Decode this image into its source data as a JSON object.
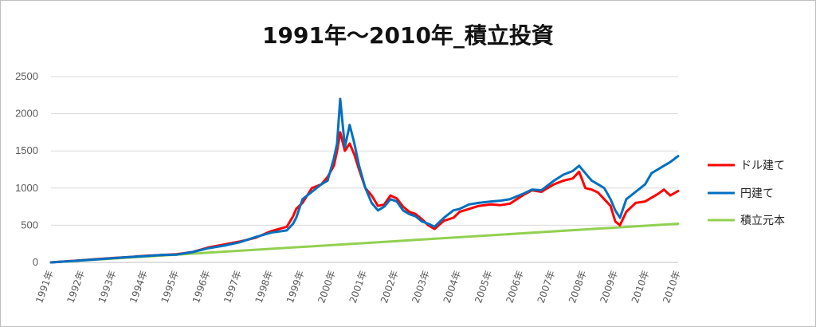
{
  "chart_data": {
    "type": "line",
    "title": "1991年～2010年_積立投資",
    "ylim": [
      0,
      2500
    ],
    "yticks": [
      0,
      500,
      1000,
      1500,
      2000,
      2500
    ],
    "xlim": [
      1991,
      2010.95
    ],
    "categories": [
      "1991年",
      "1992年",
      "1993年",
      "1994年",
      "1995年",
      "1996年",
      "1997年",
      "1998年",
      "1999年",
      "2000年",
      "2001年",
      "2002年",
      "2003年",
      "2004年",
      "2005年",
      "2006年",
      "2007年",
      "2008年",
      "2009年",
      "2010年",
      "2010年"
    ],
    "grid": true,
    "legend_position": "right",
    "series": [
      {
        "name": "ドル建て",
        "color": "#ff0000",
        "x": [
          1991.0,
          1991.5,
          1992.0,
          1992.5,
          1993.0,
          1993.5,
          1994.0,
          1994.5,
          1995.0,
          1995.5,
          1996.0,
          1996.5,
          1997.0,
          1997.5,
          1998.0,
          1998.5,
          1998.7,
          1998.8,
          1999.0,
          1999.3,
          1999.6,
          1999.8,
          2000.0,
          2000.1,
          2000.2,
          2000.35,
          2000.5,
          2000.65,
          2000.8,
          2001.0,
          2001.2,
          2001.4,
          2001.6,
          2001.8,
          2002.0,
          2002.2,
          2002.4,
          2002.6,
          2002.8,
          2003.0,
          2003.2,
          2003.5,
          2003.8,
          2004.0,
          2004.3,
          2004.6,
          2005.0,
          2005.3,
          2005.6,
          2006.0,
          2006.3,
          2006.6,
          2007.0,
          2007.3,
          2007.6,
          2007.8,
          2008.0,
          2008.2,
          2008.4,
          2008.6,
          2008.8,
          2008.95,
          2009.1,
          2009.3,
          2009.6,
          2009.9,
          2010.1,
          2010.3,
          2010.5,
          2010.7,
          2010.95
        ],
        "y": [
          0,
          15,
          30,
          45,
          60,
          72,
          88,
          100,
          110,
          140,
          200,
          240,
          280,
          330,
          420,
          480,
          620,
          720,
          800,
          1000,
          1050,
          1150,
          1300,
          1500,
          1750,
          1500,
          1600,
          1450,
          1250,
          1000,
          900,
          760,
          780,
          900,
          860,
          750,
          680,
          650,
          580,
          500,
          450,
          560,
          600,
          680,
          720,
          760,
          780,
          770,
          790,
          900,
          970,
          950,
          1050,
          1100,
          1130,
          1220,
          1000,
          980,
          940,
          850,
          760,
          550,
          500,
          680,
          800,
          820,
          870,
          920,
          980,
          900,
          960
        ]
      },
      {
        "name": "円建て",
        "color": "#0070c0",
        "x": [
          1991.0,
          1991.5,
          1992.0,
          1992.5,
          1993.0,
          1993.5,
          1994.0,
          1994.5,
          1995.0,
          1995.5,
          1996.0,
          1996.5,
          1997.0,
          1997.5,
          1998.0,
          1998.5,
          1998.7,
          1998.8,
          1999.0,
          1999.3,
          1999.6,
          1999.8,
          2000.0,
          2000.1,
          2000.2,
          2000.35,
          2000.5,
          2000.65,
          2000.8,
          2001.0,
          2001.2,
          2001.4,
          2001.6,
          2001.8,
          2002.0,
          2002.2,
          2002.4,
          2002.6,
          2002.8,
          2003.0,
          2003.2,
          2003.5,
          2003.8,
          2004.0,
          2004.3,
          2004.6,
          2005.0,
          2005.3,
          2005.6,
          2006.0,
          2006.3,
          2006.6,
          2007.0,
          2007.3,
          2007.6,
          2007.8,
          2008.0,
          2008.2,
          2008.4,
          2008.6,
          2008.8,
          2008.95,
          2009.1,
          2009.3,
          2009.6,
          2009.9,
          2010.1,
          2010.3,
          2010.5,
          2010.7,
          2010.95
        ],
        "y": [
          0,
          14,
          28,
          42,
          58,
          72,
          85,
          100,
          105,
          140,
          190,
          225,
          270,
          340,
          400,
          430,
          520,
          600,
          850,
          950,
          1050,
          1100,
          1400,
          1600,
          2200,
          1550,
          1850,
          1600,
          1300,
          1000,
          800,
          700,
          750,
          850,
          820,
          700,
          650,
          620,
          550,
          520,
          480,
          600,
          700,
          720,
          780,
          800,
          820,
          830,
          850,
          920,
          980,
          970,
          1100,
          1180,
          1230,
          1300,
          1200,
          1100,
          1050,
          1000,
          850,
          700,
          600,
          850,
          950,
          1050,
          1200,
          1250,
          1300,
          1350,
          1430
        ]
      },
      {
        "name": "積立元本",
        "color": "#92d050",
        "x": [
          1991.0,
          2010.95
        ],
        "y": [
          0,
          520
        ]
      }
    ]
  }
}
